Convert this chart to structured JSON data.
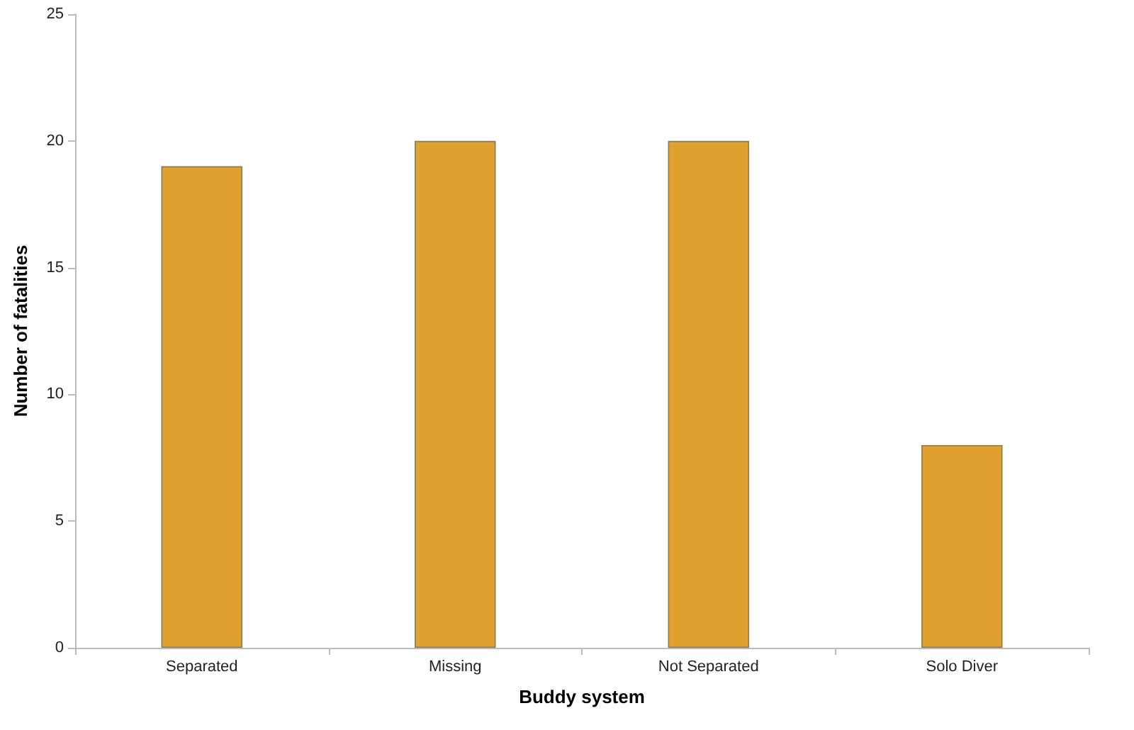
{
  "chart_data": {
    "type": "bar",
    "xlabel": "Buddy system",
    "ylabel": "Number of fatalities",
    "categories": [
      "Separated",
      "Missing",
      "Not Separated",
      "Solo Diver"
    ],
    "values": [
      19,
      20,
      20,
      8
    ],
    "color": "#e0a22e",
    "ylim": [
      0,
      25
    ],
    "yticks": [
      0,
      5,
      10,
      15,
      20,
      25
    ],
    "grid": false
  }
}
